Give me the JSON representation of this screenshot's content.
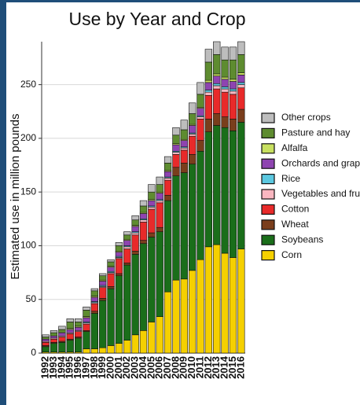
{
  "chart_data": {
    "type": "stacked_bar",
    "title": "Use by Year and Crop",
    "y_label": "Estimated use in million pounds",
    "categories": [
      "1992",
      "1993",
      "1994",
      "1995",
      "1996",
      "1997",
      "1998",
      "1999",
      "2000",
      "2001",
      "2002",
      "2003",
      "2004",
      "2005",
      "2006",
      "2007",
      "2008",
      "2009",
      "2010",
      "2011",
      "2012",
      "2013",
      "2014",
      "2015",
      "2016"
    ],
    "ylim": [
      0,
      290
    ],
    "yticks": [
      0,
      50,
      100,
      150,
      200,
      250
    ],
    "grid": true,
    "series": [
      {
        "name": "Corn",
        "color": "#f5d000",
        "values": [
          1,
          1,
          1,
          1,
          1,
          4,
          4,
          5,
          7,
          9,
          12,
          17,
          21,
          29,
          34,
          57,
          68,
          69,
          77,
          87,
          99,
          101,
          93,
          89,
          97
        ]
      },
      {
        "name": "Soybeans",
        "color": "#1a6e1a",
        "values": [
          5,
          8,
          9,
          11,
          13,
          16,
          33,
          44,
          53,
          63,
          70,
          75,
          81,
          79,
          79,
          85,
          97,
          99,
          99,
          101,
          107,
          111,
          117,
          118,
          118
        ]
      },
      {
        "name": "Wheat",
        "color": "#7a3e1c",
        "values": [
          1,
          1,
          1,
          1,
          1,
          1,
          2,
          2,
          2,
          2,
          2,
          3,
          3,
          4,
          4,
          5,
          8,
          9,
          9,
          10,
          12,
          11,
          10,
          11,
          12
        ]
      },
      {
        "name": "Cotton",
        "color": "#e82a2a",
        "values": [
          3,
          3,
          4,
          5,
          5,
          6,
          7,
          10,
          12,
          14,
          13,
          15,
          17,
          22,
          23,
          14,
          12,
          12,
          17,
          20,
          22,
          23,
          23,
          23,
          20
        ]
      },
      {
        "name": "Vegetables and fruit",
        "color": "#f9b6c0",
        "values": [
          1,
          1,
          1,
          1,
          1,
          1,
          1,
          1,
          1,
          1,
          2,
          2,
          2,
          2,
          2,
          2,
          2,
          2,
          2,
          2,
          3,
          3,
          3,
          3,
          3
        ]
      },
      {
        "name": "Rice",
        "color": "#5bc8e0",
        "values": [
          0,
          0,
          0,
          0,
          0,
          1,
          1,
          1,
          1,
          1,
          1,
          1,
          1,
          1,
          1,
          1,
          1,
          1,
          1,
          1,
          2,
          2,
          2,
          2,
          2
        ]
      },
      {
        "name": "Orchards and grapes",
        "color": "#8e44b0",
        "values": [
          2,
          2,
          3,
          3,
          3,
          4,
          4,
          4,
          4,
          4,
          5,
          5,
          5,
          5,
          6,
          5,
          6,
          6,
          7,
          7,
          7,
          7,
          7,
          7,
          7
        ]
      },
      {
        "name": "Alfalfa",
        "color": "#c8e060",
        "values": [
          0,
          0,
          0,
          1,
          1,
          1,
          1,
          1,
          1,
          1,
          1,
          1,
          1,
          1,
          1,
          1,
          1,
          1,
          1,
          1,
          2,
          2,
          2,
          2,
          2
        ]
      },
      {
        "name": "Pasture and hay",
        "color": "#5e8c30",
        "values": [
          2,
          3,
          3,
          6,
          4,
          6,
          5,
          4,
          4,
          5,
          4,
          5,
          6,
          7,
          7,
          7,
          8,
          9,
          10,
          12,
          17,
          18,
          16,
          18,
          17
        ]
      },
      {
        "name": "Other crops",
        "color": "#bdbdbd",
        "values": [
          2,
          2,
          3,
          3,
          3,
          3,
          2,
          2,
          2,
          3,
          3,
          4,
          5,
          7,
          7,
          6,
          7,
          9,
          10,
          11,
          12,
          12,
          12,
          12,
          12
        ]
      }
    ]
  }
}
